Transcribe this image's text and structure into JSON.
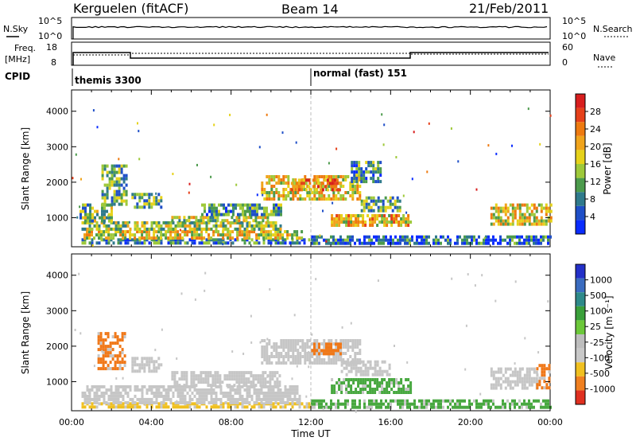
{
  "header": {
    "station": "Kerguelen (fitACF)",
    "beam": "Beam 14",
    "date": "21/Feb/2011"
  },
  "top_panels": {
    "nsky_label": "N.Sky",
    "nsearch_label": "N.Search",
    "freq_label_1": "Freq.",
    "freq_label_2": "[MHz]",
    "nave_label": "Nave",
    "cpid_label": "CPID",
    "nsky_ticks": [
      "10^5",
      "10^0"
    ],
    "nsearch_ticks": [
      "10^5",
      "10^0"
    ],
    "freq_ticks": [
      "18",
      "8"
    ],
    "nave_ticks": [
      "60",
      "0"
    ],
    "cpid_modes": [
      {
        "label": "themis 3300",
        "start_hour": 0
      },
      {
        "label": "normal (fast) 151",
        "start_hour": 12
      }
    ]
  },
  "chart_data": [
    {
      "type": "heatmap",
      "title": "Power",
      "ylabel": "Slant Range [km]",
      "xlabel": "",
      "xlim_hours": [
        0,
        24
      ],
      "ylim": [
        180,
        4600
      ],
      "yticks": [
        "1000",
        "2000",
        "3000",
        "4000"
      ],
      "colorbar_label": "Power [dB]",
      "colorbar_ticks": [
        "4",
        "8",
        "12",
        "16",
        "20",
        "24",
        "28"
      ],
      "colorbar_colors": [
        "#0a2cff",
        "#1f4fc8",
        "#2f7a8c",
        "#4c9b4c",
        "#9ec93a",
        "#e6d21a",
        "#f0a41c",
        "#ee7a10",
        "#e6401a",
        "#d81e1e"
      ],
      "echo_regions": [
        {
          "t_start": 0.5,
          "t_end": 12.0,
          "r_min": 250,
          "r_max": 420,
          "level": 0.25
        },
        {
          "t_start": 0.6,
          "t_end": 11.5,
          "r_min": 420,
          "r_max": 650,
          "level": 0.55
        },
        {
          "t_start": 0.5,
          "t_end": 10.5,
          "r_min": 650,
          "r_max": 900,
          "level": 0.45
        },
        {
          "t_start": 0.4,
          "t_end": 2.0,
          "r_min": 900,
          "r_max": 1400,
          "level": 0.4
        },
        {
          "t_start": 1.5,
          "t_end": 2.8,
          "r_min": 1400,
          "r_max": 2500,
          "level": 0.35
        },
        {
          "t_start": 3.0,
          "t_end": 4.5,
          "r_min": 1300,
          "r_max": 1700,
          "level": 0.35
        },
        {
          "t_start": 5.0,
          "t_end": 10.0,
          "r_min": 880,
          "r_max": 1050,
          "level": 0.5
        },
        {
          "t_start": 6.5,
          "t_end": 10.5,
          "r_min": 1050,
          "r_max": 1400,
          "level": 0.3
        },
        {
          "t_start": 9.5,
          "t_end": 14.5,
          "r_min": 1500,
          "r_max": 2200,
          "level": 0.55
        },
        {
          "t_start": 11.0,
          "t_end": 13.5,
          "r_min": 1800,
          "r_max": 2100,
          "level": 0.7
        },
        {
          "t_start": 13.0,
          "t_end": 17.0,
          "r_min": 800,
          "r_max": 1100,
          "level": 0.6
        },
        {
          "t_start": 14.5,
          "t_end": 16.5,
          "r_min": 1200,
          "r_max": 1600,
          "level": 0.35
        },
        {
          "t_start": 14.0,
          "t_end": 15.5,
          "r_min": 2000,
          "r_max": 2600,
          "level": 0.3
        },
        {
          "t_start": 21.0,
          "t_end": 24.0,
          "r_min": 800,
          "r_max": 1400,
          "level": 0.55
        },
        {
          "t_start": 12.0,
          "t_end": 24.0,
          "r_min": 250,
          "r_max": 500,
          "level": 0.2
        }
      ]
    },
    {
      "type": "heatmap",
      "title": "Velocity",
      "ylabel": "Slant Range [km]",
      "xlabel": "Time UT",
      "xlim_hours": [
        0,
        24
      ],
      "ylim": [
        180,
        4600
      ],
      "xticks": [
        "00:00",
        "04:00",
        "08:00",
        "12:00",
        "16:00",
        "20:00",
        "00:00"
      ],
      "yticks": [
        "1000",
        "2000",
        "3000",
        "4000"
      ],
      "colorbar_label": "Velocity [m s⁻¹]",
      "colorbar_ticks": [
        "1000",
        "500",
        "100",
        "25",
        "-25",
        "-100",
        "-500",
        "-1000"
      ],
      "colorbar_colors": [
        "#2330c8",
        "#3a6cc0",
        "#2e8a8a",
        "#3aa03a",
        "#6cc83a",
        "#bdbdbd",
        "#c8c8c8",
        "#f0c020",
        "#f08020",
        "#e03020"
      ],
      "echo_regions": [
        {
          "t_start": 0.5,
          "t_end": 12.0,
          "r_min": 250,
          "r_max": 420,
          "level": "yellow"
        },
        {
          "t_start": 0.5,
          "t_end": 11.5,
          "r_min": 420,
          "r_max": 900,
          "level": "grey"
        },
        {
          "t_start": 1.3,
          "t_end": 2.7,
          "r_min": 1400,
          "r_max": 2400,
          "level": "orange"
        },
        {
          "t_start": 3.0,
          "t_end": 4.5,
          "r_min": 1300,
          "r_max": 1700,
          "level": "grey"
        },
        {
          "t_start": 5.0,
          "t_end": 10.5,
          "r_min": 880,
          "r_max": 1300,
          "level": "grey"
        },
        {
          "t_start": 9.5,
          "t_end": 14.5,
          "r_min": 1500,
          "r_max": 2200,
          "level": "grey"
        },
        {
          "t_start": 12.0,
          "t_end": 13.5,
          "r_min": 1800,
          "r_max": 2100,
          "level": "orange"
        },
        {
          "t_start": 13.0,
          "t_end": 17.0,
          "r_min": 700,
          "r_max": 1100,
          "level": "green"
        },
        {
          "t_start": 13.5,
          "t_end": 16.0,
          "r_min": 1200,
          "r_max": 1600,
          "level": "grey"
        },
        {
          "t_start": 21.0,
          "t_end": 23.3,
          "r_min": 800,
          "r_max": 1400,
          "level": "grey"
        },
        {
          "t_start": 23.3,
          "t_end": 24.0,
          "r_min": 800,
          "r_max": 1500,
          "level": "orange"
        },
        {
          "t_start": 12.0,
          "t_end": 24.0,
          "r_min": 250,
          "r_max": 500,
          "level": "green"
        }
      ]
    }
  ]
}
